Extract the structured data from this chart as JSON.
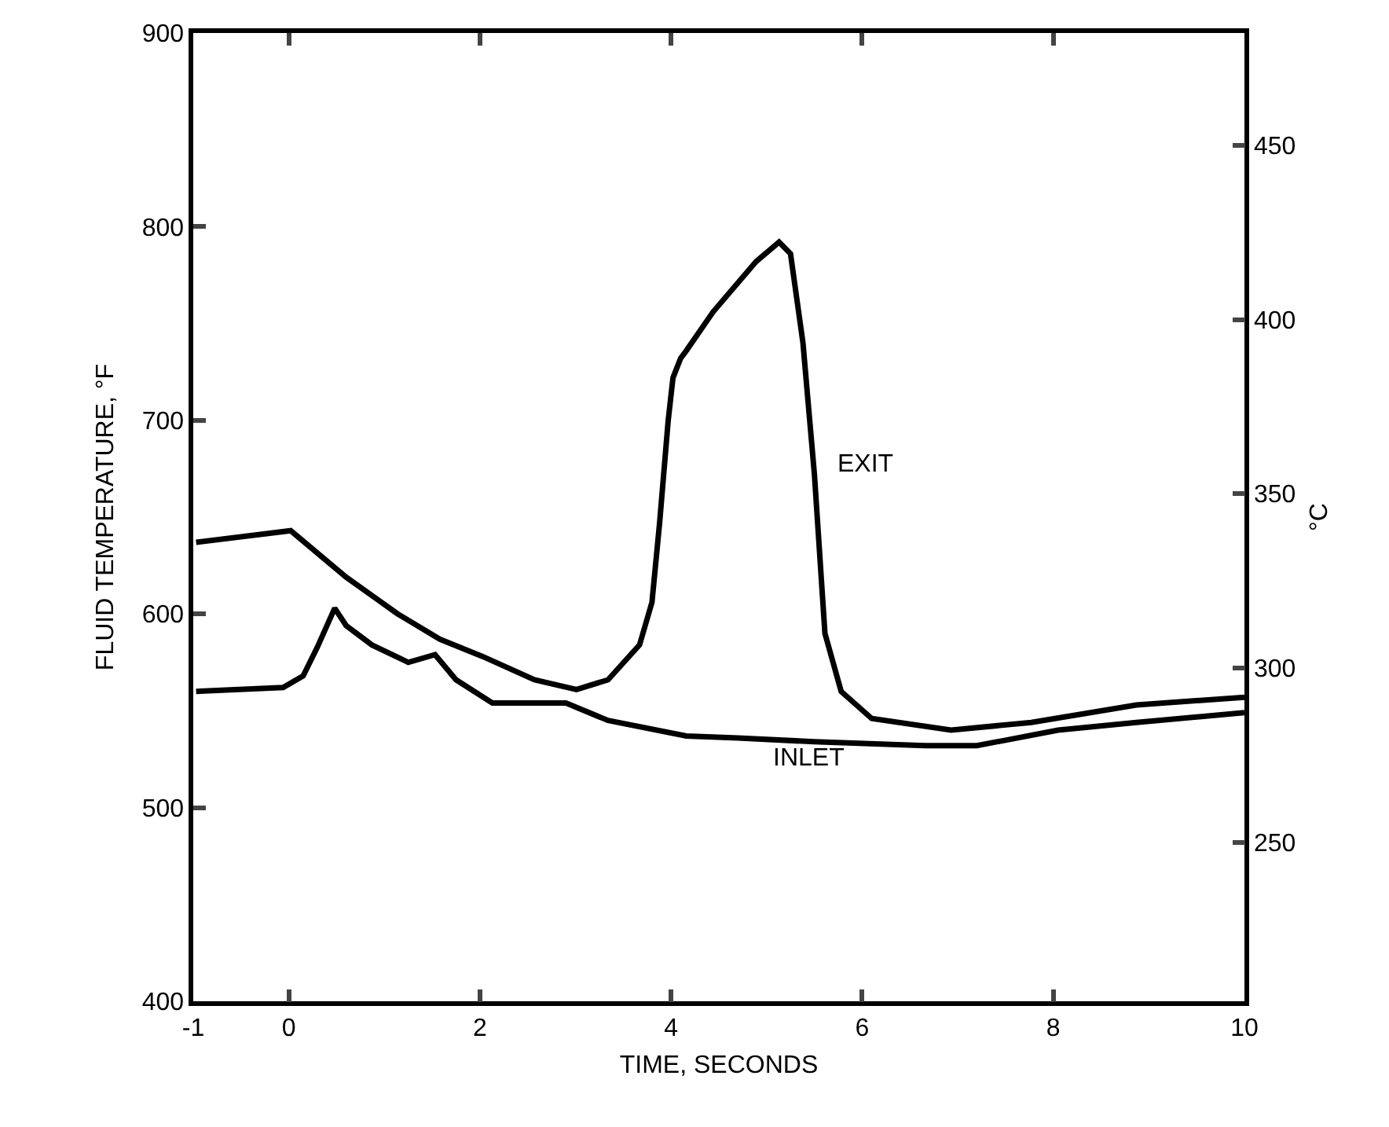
{
  "chart_data": {
    "type": "line",
    "xlabel": "TIME, SECONDS",
    "ylabel": "FLUID TEMPERATURE, °F",
    "y2label": "°C",
    "series": [
      {
        "name": "EXIT",
        "color": "#000000",
        "x": [
          -0.97,
          0.02,
          0.6,
          1.14,
          1.58,
          2.03,
          2.57,
          3.01,
          3.34,
          3.67,
          3.8,
          3.88,
          3.97,
          4.02,
          4.1,
          4.16,
          4.44,
          4.89,
          5.13,
          5.25,
          5.38,
          5.5,
          5.61,
          5.78,
          6.1,
          6.93,
          7.77,
          8.87,
          10
        ],
        "values": [
          637,
          643,
          619,
          600,
          587,
          578,
          566,
          561,
          566,
          584,
          606,
          647,
          700,
          722,
          732,
          736,
          756,
          782,
          792,
          786,
          740,
          672,
          590,
          560,
          546,
          540,
          544,
          553,
          557
        ]
      },
      {
        "name": "INLET",
        "color": "#000000",
        "x": [
          -0.97,
          -0.06,
          0.15,
          0.3,
          0.48,
          0.6,
          0.87,
          1.25,
          1.53,
          1.75,
          2.13,
          2.57,
          2.9,
          3.34,
          4.16,
          4.7,
          5.5,
          6.66,
          7.2,
          8.05,
          8.87,
          10
        ],
        "values": [
          560,
          562,
          568,
          583,
          603,
          594,
          584,
          575,
          579,
          566,
          554,
          554,
          554,
          545,
          537,
          536,
          534,
          532,
          532,
          540,
          544,
          549
        ]
      }
    ],
    "xlim": [
      -1,
      10
    ],
    "xticks": [
      -1,
      0,
      2,
      4,
      6,
      8,
      10
    ],
    "ylim": [
      400,
      900
    ],
    "yticks": [
      400,
      500,
      600,
      700,
      800,
      900
    ],
    "y2lim": [
      204.4,
      482.2
    ],
    "y2ticks": [
      250,
      300,
      350,
      400,
      450
    ],
    "grid": false,
    "legend": false,
    "marker": "none",
    "line_style": "solid"
  }
}
